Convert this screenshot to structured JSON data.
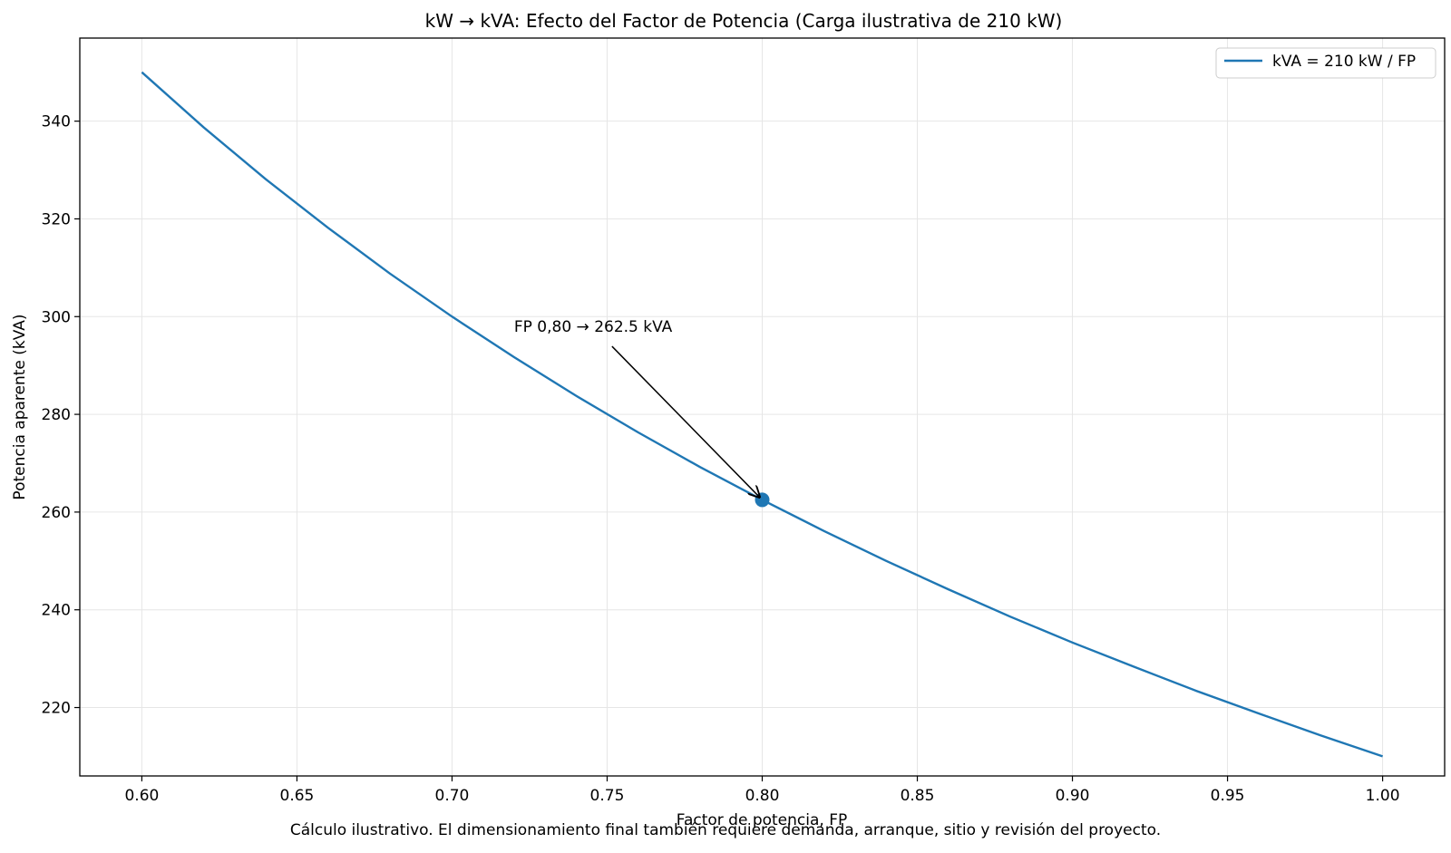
{
  "chart_data": {
    "type": "line",
    "title": "kW → kVA: Efecto del Factor de Potencia (Carga ilustrativa de 210 kW)",
    "xlabel": "Factor de potencia, FP",
    "ylabel": "Potencia aparente (kVA)",
    "xlim": [
      0.58,
      1.02
    ],
    "ylim": [
      206.0,
      357.0
    ],
    "grid": true,
    "legend_position": "top-right",
    "x_ticks": [
      0.6,
      0.65,
      0.7,
      0.75,
      0.8,
      0.85,
      0.9,
      0.95,
      1.0
    ],
    "x_tick_labels": [
      "0.60",
      "0.65",
      "0.70",
      "0.75",
      "0.80",
      "0.85",
      "0.90",
      "0.95",
      "1.00"
    ],
    "y_ticks": [
      220,
      240,
      260,
      280,
      300,
      320,
      340
    ],
    "y_tick_labels": [
      "220",
      "240",
      "260",
      "280",
      "300",
      "320",
      "340"
    ],
    "series": [
      {
        "name": "kVA = 210 kW / FP",
        "color": "#1f77b4",
        "x": [
          0.6,
          0.62,
          0.64,
          0.66,
          0.68,
          0.7,
          0.72,
          0.74,
          0.76,
          0.78,
          0.8,
          0.82,
          0.84,
          0.86,
          0.88,
          0.9,
          0.92,
          0.94,
          0.96,
          0.98,
          1.0
        ],
        "y": [
          350.0,
          338.7,
          328.1,
          318.2,
          308.8,
          300.0,
          291.7,
          283.8,
          276.3,
          269.2,
          262.5,
          256.1,
          250.0,
          244.2,
          238.6,
          233.3,
          228.3,
          223.4,
          218.8,
          214.3,
          210.0
        ]
      }
    ],
    "highlight_point": {
      "x": 0.8,
      "y": 262.5,
      "color": "#1f77b4"
    },
    "annotation": {
      "text": "FP 0,80 → 262.5 kVA",
      "x": 0.72,
      "y": 298
    }
  },
  "caption": "Cálculo ilustrativo. El dimensionamiento final también requiere demanda, arranque, sitio y revisión del proyecto."
}
